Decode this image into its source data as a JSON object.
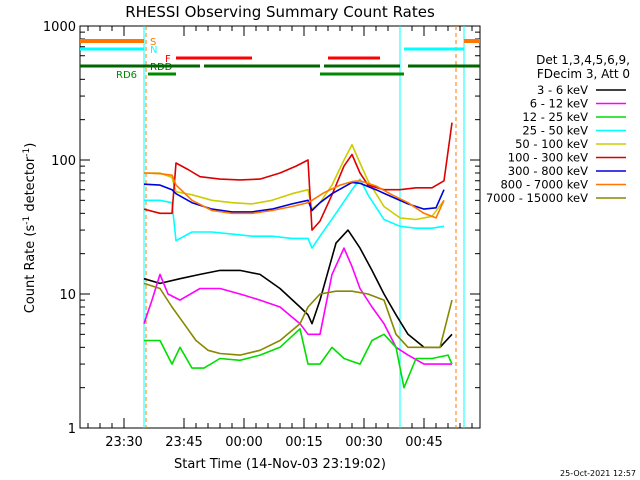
{
  "chart_data": {
    "type": "line",
    "title": "RHESSI Observing Summary Count Rates",
    "xlabel": "Start Time (14-Nov-03 23:19:02)",
    "ylabel_pre": "Count Rate (s",
    "ylabel_sup": "-1",
    "ylabel_post": " detector",
    "ylabel_end": ")",
    "yscale": "log",
    "ylim": [
      1,
      1000
    ],
    "xlim_min": [
      0,
      58
    ],
    "x_ticks": [
      {
        "min": 11,
        "label": "23:30"
      },
      {
        "min": 26,
        "label": "23:45"
      },
      {
        "min": 41,
        "label": "00:00"
      },
      {
        "min": 56,
        "label": "00:15"
      },
      {
        "min": 71,
        "label": "00:30"
      },
      {
        "min": 86,
        "label": "00:45"
      }
    ],
    "xlim": [
      0,
      100
    ],
    "y_tick_labels": [
      {
        "v": 1,
        "label": "1"
      },
      {
        "v": 10,
        "label": "10"
      },
      {
        "v": 100,
        "label": "100"
      },
      {
        "v": 1000,
        "label": "1000"
      }
    ],
    "legend_header": [
      "Det 1,3,4,5,6,9,",
      "FDecim 3, Att 0"
    ],
    "footer": "25-Oct-2021 12:57",
    "series": [
      {
        "name": "3 - 6 keV",
        "color": "#000000",
        "points": [
          [
            16,
            13
          ],
          [
            20,
            12
          ],
          [
            25,
            13
          ],
          [
            30,
            14
          ],
          [
            35,
            15
          ],
          [
            40,
            15
          ],
          [
            45,
            14
          ],
          [
            50,
            11
          ],
          [
            55,
            8
          ],
          [
            57,
            7
          ],
          [
            58,
            6
          ],
          [
            60,
            9
          ],
          [
            64,
            24
          ],
          [
            67,
            30
          ],
          [
            70,
            22
          ],
          [
            73,
            15
          ],
          [
            76,
            10
          ],
          [
            79,
            7
          ],
          [
            82,
            5
          ],
          [
            86,
            4
          ],
          [
            90,
            4
          ],
          [
            93,
            5
          ]
        ]
      },
      {
        "name": "6 - 12 keV",
        "color": "#ff00ff",
        "points": [
          [
            16,
            6
          ],
          [
            18,
            9
          ],
          [
            20,
            14
          ],
          [
            22,
            10
          ],
          [
            25,
            9
          ],
          [
            30,
            11
          ],
          [
            35,
            11
          ],
          [
            40,
            10
          ],
          [
            45,
            9
          ],
          [
            50,
            8
          ],
          [
            55,
            6
          ],
          [
            57,
            5
          ],
          [
            58,
            5
          ],
          [
            60,
            5
          ],
          [
            63,
            14
          ],
          [
            66,
            22
          ],
          [
            68,
            16
          ],
          [
            70,
            11
          ],
          [
            73,
            8
          ],
          [
            76,
            6
          ],
          [
            79,
            4
          ],
          [
            82,
            3.5
          ],
          [
            86,
            3
          ],
          [
            90,
            3
          ],
          [
            93,
            3
          ]
        ]
      },
      {
        "name": "12 - 25 keV",
        "color": "#00dd00",
        "points": [
          [
            16,
            4.5
          ],
          [
            20,
            4.5
          ],
          [
            23,
            3
          ],
          [
            25,
            4
          ],
          [
            28,
            2.8
          ],
          [
            31,
            2.8
          ],
          [
            35,
            3.3
          ],
          [
            40,
            3.2
          ],
          [
            45,
            3.5
          ],
          [
            50,
            4
          ],
          [
            55,
            5.5
          ],
          [
            57,
            3
          ],
          [
            58,
            3
          ],
          [
            60,
            3
          ],
          [
            63,
            4
          ],
          [
            66,
            3.3
          ],
          [
            70,
            3
          ],
          [
            73,
            4.5
          ],
          [
            76,
            5
          ],
          [
            79,
            4
          ],
          [
            81,
            2
          ],
          [
            84,
            3.3
          ],
          [
            88,
            3.3
          ],
          [
            92,
            3.5
          ],
          [
            93,
            3
          ]
        ]
      },
      {
        "name": "25 - 50 keV",
        "color": "#00ffff",
        "points": [
          [
            16,
            50
          ],
          [
            20,
            50
          ],
          [
            23,
            48
          ],
          [
            24,
            25
          ],
          [
            28,
            29
          ],
          [
            33,
            29
          ],
          [
            38,
            28
          ],
          [
            43,
            27
          ],
          [
            48,
            27
          ],
          [
            53,
            26
          ],
          [
            57,
            26
          ],
          [
            58,
            22
          ],
          [
            60,
            27
          ],
          [
            64,
            40
          ],
          [
            68,
            60
          ],
          [
            70,
            72
          ],
          [
            72,
            55
          ],
          [
            76,
            36
          ],
          [
            80,
            32
          ],
          [
            84,
            31
          ],
          [
            88,
            31
          ],
          [
            91,
            32
          ]
        ]
      },
      {
        "name": "50 - 100 keV",
        "color": "#cccc00",
        "points": [
          [
            16,
            80
          ],
          [
            20,
            80
          ],
          [
            23,
            74
          ],
          [
            24,
            58
          ],
          [
            28,
            55
          ],
          [
            33,
            50
          ],
          [
            38,
            48
          ],
          [
            43,
            47
          ],
          [
            48,
            50
          ],
          [
            53,
            56
          ],
          [
            57,
            60
          ],
          [
            58,
            43
          ],
          [
            60,
            48
          ],
          [
            63,
            65
          ],
          [
            66,
            100
          ],
          [
            68,
            130
          ],
          [
            70,
            95
          ],
          [
            72,
            70
          ],
          [
            76,
            45
          ],
          [
            80,
            37
          ],
          [
            84,
            36
          ],
          [
            88,
            38
          ],
          [
            91,
            50
          ]
        ]
      },
      {
        "name": "100 - 300 keV",
        "color": "#dd0000",
        "points": [
          [
            16,
            43
          ],
          [
            20,
            40
          ],
          [
            23,
            40
          ],
          [
            24,
            95
          ],
          [
            27,
            85
          ],
          [
            30,
            75
          ],
          [
            35,
            72
          ],
          [
            40,
            71
          ],
          [
            45,
            72
          ],
          [
            50,
            80
          ],
          [
            54,
            90
          ],
          [
            57,
            100
          ],
          [
            58,
            30
          ],
          [
            60,
            35
          ],
          [
            63,
            55
          ],
          [
            66,
            90
          ],
          [
            68,
            110
          ],
          [
            70,
            80
          ],
          [
            72,
            65
          ],
          [
            76,
            60
          ],
          [
            80,
            60
          ],
          [
            84,
            62
          ],
          [
            88,
            62
          ],
          [
            91,
            70
          ],
          [
            93,
            190
          ]
        ]
      },
      {
        "name": "300 - 800 keV",
        "color": "#0000dd",
        "points": [
          [
            16,
            66
          ],
          [
            20,
            65
          ],
          [
            23,
            60
          ],
          [
            24,
            56
          ],
          [
            28,
            48
          ],
          [
            33,
            43
          ],
          [
            38,
            41
          ],
          [
            43,
            41
          ],
          [
            48,
            43
          ],
          [
            53,
            47
          ],
          [
            57,
            50
          ],
          [
            58,
            42
          ],
          [
            60,
            48
          ],
          [
            63,
            56
          ],
          [
            66,
            63
          ],
          [
            68,
            68
          ],
          [
            70,
            67
          ],
          [
            74,
            60
          ],
          [
            78,
            53
          ],
          [
            82,
            47
          ],
          [
            86,
            43
          ],
          [
            89,
            44
          ],
          [
            91,
            60
          ]
        ]
      },
      {
        "name": "800 - 7000 keV",
        "color": "#ff7700",
        "points": [
          [
            16,
            80
          ],
          [
            20,
            79
          ],
          [
            23,
            77
          ],
          [
            24,
            65
          ],
          [
            28,
            50
          ],
          [
            33,
            42
          ],
          [
            38,
            40
          ],
          [
            43,
            40
          ],
          [
            48,
            42
          ],
          [
            53,
            45
          ],
          [
            57,
            48
          ],
          [
            58,
            50
          ],
          [
            61,
            57
          ],
          [
            65,
            65
          ],
          [
            68,
            69
          ],
          [
            70,
            70
          ],
          [
            74,
            64
          ],
          [
            78,
            55
          ],
          [
            82,
            48
          ],
          [
            86,
            40
          ],
          [
            89,
            37
          ],
          [
            91,
            50
          ]
        ]
      },
      {
        "name": "7000 - 15000 keV",
        "color": "#888800",
        "points": [
          [
            16,
            12
          ],
          [
            20,
            11
          ],
          [
            23,
            8
          ],
          [
            26,
            6
          ],
          [
            29,
            4.5
          ],
          [
            32,
            3.8
          ],
          [
            35,
            3.6
          ],
          [
            40,
            3.5
          ],
          [
            45,
            3.8
          ],
          [
            50,
            4.5
          ],
          [
            55,
            6
          ],
          [
            57,
            8
          ],
          [
            60,
            10
          ],
          [
            64,
            10.5
          ],
          [
            68,
            10.5
          ],
          [
            72,
            10
          ],
          [
            76,
            9
          ],
          [
            79,
            5
          ],
          [
            82,
            4
          ],
          [
            86,
            4
          ],
          [
            90,
            4
          ],
          [
            93,
            9
          ]
        ]
      }
    ],
    "flag_labels": [
      {
        "label": "S",
        "color": "#ff7700"
      },
      {
        "label": "N",
        "color": "#00ffff"
      },
      {
        "label": "F",
        "color": "#ff0000"
      },
      {
        "label": "RDD",
        "color": "#006600"
      },
      {
        "label": "RD6",
        "color": "#008800"
      }
    ]
  }
}
